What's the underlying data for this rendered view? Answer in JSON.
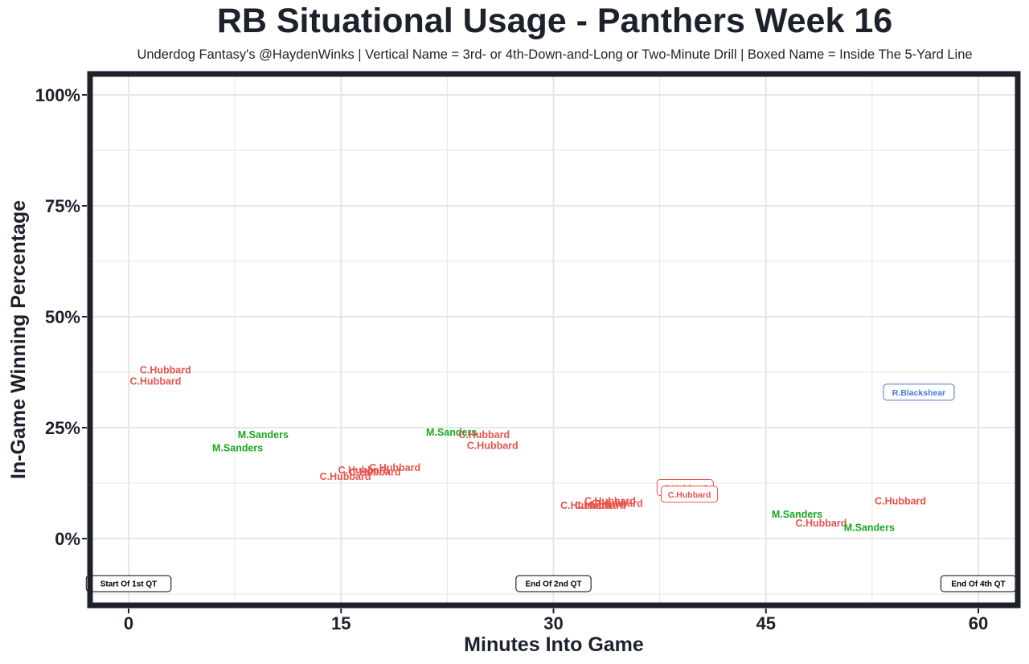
{
  "header": {
    "title": "RB Situational Usage - Panthers Week 16",
    "subtitle": "Underdog Fantasy's @HaydenWinks | Vertical Name = 3rd- or 4th-Down-and-Long or Two-Minute Drill | Boxed Name = Inside The 5-Yard Line"
  },
  "colors": {
    "C.Hubbard": "#e8534c",
    "M.Sanders": "#17a81d",
    "R.Blackshear": "#4a78d9",
    "text": "#1d212b",
    "grid": "#e6e6e6",
    "frame": "#1d212b"
  },
  "chart_data": {
    "type": "scatter",
    "xlabel": "Minutes Into Game",
    "ylabel": "In-Game Winning Percentage",
    "xlim": [
      -2.5,
      63
    ],
    "ylim": [
      -15,
      104
    ],
    "x_ticks": [
      0,
      15,
      30,
      45,
      60
    ],
    "x_tick_labels": [
      "0",
      "15",
      "30",
      "45",
      "60"
    ],
    "y_ticks": [
      0,
      25,
      50,
      75,
      100
    ],
    "y_tick_labels": [
      "0%",
      "25%",
      "50%",
      "75%",
      "100%"
    ],
    "grid": true,
    "points": [
      {
        "x": 2.6,
        "y": 38.0,
        "label": "C.Hubbard",
        "boxed": false
      },
      {
        "x": 1.9,
        "y": 35.5,
        "label": "C.Hubbard",
        "boxed": false
      },
      {
        "x": 9.5,
        "y": 23.5,
        "label": "M.Sanders",
        "boxed": false
      },
      {
        "x": 7.7,
        "y": 20.5,
        "label": "M.Sanders",
        "boxed": false
      },
      {
        "x": 16.6,
        "y": 15.5,
        "label": "C.Hubbard",
        "boxed": false
      },
      {
        "x": 17.4,
        "y": 15.0,
        "label": "C.Hubbard",
        "boxed": false
      },
      {
        "x": 18.8,
        "y": 16.0,
        "label": "C.Hubbard",
        "boxed": false
      },
      {
        "x": 15.3,
        "y": 14.0,
        "label": "C.Hubbard",
        "boxed": false
      },
      {
        "x": 22.8,
        "y": 24.0,
        "label": "M.Sanders",
        "boxed": false
      },
      {
        "x": 25.1,
        "y": 23.5,
        "label": "C.Hubbard",
        "boxed": false
      },
      {
        "x": 25.7,
        "y": 21.0,
        "label": "C.Hubbard",
        "boxed": false
      },
      {
        "x": 32.3,
        "y": 7.5,
        "label": "C.Hubbard",
        "boxed": false
      },
      {
        "x": 33.3,
        "y": 7.5,
        "label": "C.Hubbard",
        "boxed": false
      },
      {
        "x": 34.5,
        "y": 8.0,
        "label": "C.Hubbard",
        "boxed": false
      },
      {
        "x": 34.0,
        "y": 8.5,
        "label": "C.Hubbard",
        "boxed": false
      },
      {
        "x": 38.2,
        "y": 10.5,
        "label": "C.",
        "boxed": false
      },
      {
        "x": 39.3,
        "y": 11.5,
        "label": "C.Hubbard",
        "boxed": true
      },
      {
        "x": 39.6,
        "y": 10.0,
        "label": "C.Hubbard",
        "boxed": true
      },
      {
        "x": 47.2,
        "y": 5.5,
        "label": "M.Sanders",
        "boxed": false
      },
      {
        "x": 48.9,
        "y": 3.5,
        "label": "C.Hubbard",
        "boxed": false
      },
      {
        "x": 52.3,
        "y": 2.5,
        "label": "M.Sanders",
        "boxed": false
      },
      {
        "x": 54.5,
        "y": 8.5,
        "label": "C.Hubbard",
        "boxed": false
      },
      {
        "x": 55.8,
        "y": 33.0,
        "label": "R.Blackshear",
        "boxed": true
      }
    ],
    "quarter_markers": [
      {
        "x": 0,
        "label": "Start Of 1st QT"
      },
      {
        "x": 30,
        "label": "End Of 2nd QT"
      },
      {
        "x": 60,
        "label": "End Of 4th QT"
      }
    ]
  }
}
